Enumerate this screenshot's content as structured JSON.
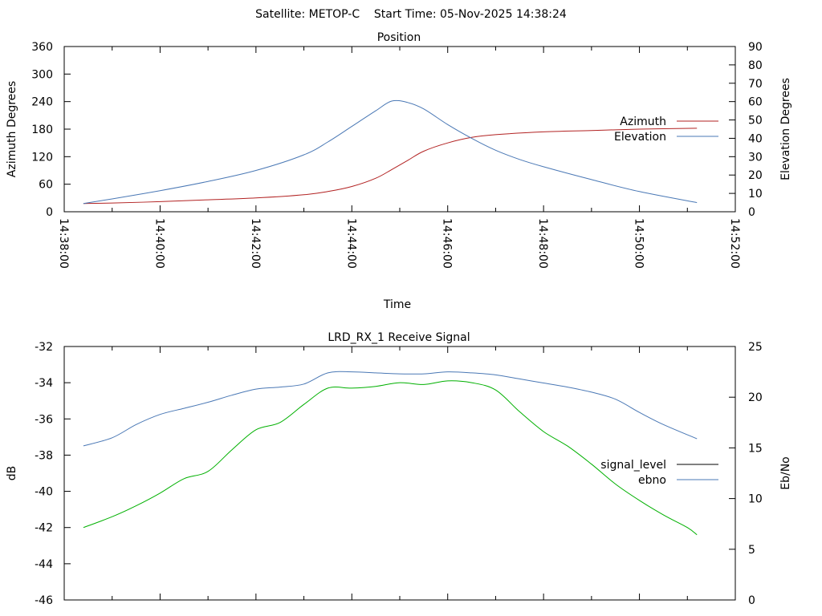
{
  "header": {
    "title": "Satellite: METOP-C    Start Time: 05-Nov-2025 14:38:24"
  },
  "chart_data": [
    {
      "type": "line",
      "title": "Position",
      "xlabel": "Time",
      "ylabel": "Azimuth Degrees",
      "y2label": "Elevation Degrees",
      "xlim": [
        "14:38:00",
        "14:52:00"
      ],
      "x_ticks": [
        "14:38:00",
        "14:40:00",
        "14:42:00",
        "14:44:00",
        "14:46:00",
        "14:48:00",
        "14:50:00",
        "14:52:00"
      ],
      "ylim": [
        0,
        360
      ],
      "y_ticks": [
        "0",
        "60",
        "120",
        "180",
        "240",
        "300",
        "360"
      ],
      "y2lim": [
        0,
        90
      ],
      "y2_ticks": [
        "0",
        "10",
        "20",
        "30",
        "40",
        "50",
        "60",
        "70",
        "80",
        "90"
      ],
      "grid": false,
      "legend_position": "right",
      "series": [
        {
          "name": "Azimuth",
          "axis": "left",
          "color": "#b22222",
          "x": [
            "14:38:24",
            "14:39:00",
            "14:40:00",
            "14:41:00",
            "14:42:00",
            "14:43:00",
            "14:43:30",
            "14:44:00",
            "14:44:30",
            "14:44:50",
            "14:45:10",
            "14:45:30",
            "14:46:00",
            "14:46:30",
            "14:47:00",
            "14:48:00",
            "14:49:00",
            "14:50:00",
            "14:51:12"
          ],
          "y": [
            18,
            19,
            22,
            26,
            30,
            37,
            44,
            55,
            73,
            92,
            112,
            132,
            150,
            162,
            168,
            174,
            177,
            180,
            182
          ]
        },
        {
          "name": "Elevation",
          "axis": "right",
          "color": "#4a78b5",
          "x": [
            "14:38:24",
            "14:39:00",
            "14:40:00",
            "14:41:00",
            "14:42:00",
            "14:43:00",
            "14:43:30",
            "14:44:00",
            "14:44:30",
            "14:44:50",
            "14:45:10",
            "14:45:30",
            "14:46:00",
            "14:46:30",
            "14:47:00",
            "14:47:30",
            "14:48:00",
            "14:49:00",
            "14:50:00",
            "14:51:12"
          ],
          "y": [
            4.5,
            7,
            11.5,
            16.5,
            22.5,
            31,
            38,
            46.5,
            55,
            60.3,
            59.5,
            56,
            47.5,
            40,
            33.5,
            28.5,
            24.5,
            17.5,
            11,
            5
          ]
        }
      ]
    },
    {
      "type": "line",
      "title": "LRD_RX_1 Receive Signal",
      "xlabel": "",
      "ylabel": "dB",
      "y2label": "Eb/No",
      "xlim": [
        "14:38:00",
        "14:52:00"
      ],
      "ylim": [
        -46,
        -32
      ],
      "y_ticks": [
        "-32",
        "-34",
        "-36",
        "-38",
        "-40",
        "-42",
        "-44",
        "-46"
      ],
      "y2lim": [
        0,
        25
      ],
      "y2_ticks": [
        "0",
        "5",
        "10",
        "15",
        "20",
        "25"
      ],
      "grid": false,
      "legend_position": "right",
      "series": [
        {
          "name": "signal_level",
          "axis": "left",
          "color": "#000000",
          "x": [],
          "y": []
        },
        {
          "name": "ebno",
          "axis": "right",
          "color": "#4a78b5",
          "x": [
            "14:38:24",
            "14:39:00",
            "14:39:30",
            "14:40:00",
            "14:40:30",
            "14:41:00",
            "14:41:30",
            "14:42:00",
            "14:42:30",
            "14:43:00",
            "14:43:30",
            "14:44:00",
            "14:44:30",
            "14:45:00",
            "14:45:30",
            "14:46:00",
            "14:46:30",
            "14:47:00",
            "14:47:30",
            "14:48:00",
            "14:48:30",
            "14:49:00",
            "14:49:30",
            "14:50:00",
            "14:50:30",
            "14:51:12"
          ],
          "y": [
            15.2,
            16.0,
            17.3,
            18.3,
            18.9,
            19.5,
            20.2,
            20.8,
            21.0,
            21.3,
            22.4,
            22.5,
            22.4,
            22.3,
            22.3,
            22.5,
            22.4,
            22.2,
            21.8,
            21.4,
            21.0,
            20.5,
            19.8,
            18.5,
            17.3,
            15.9
          ]
        },
        {
          "name": "",
          "axis": "left",
          "color": "#00b000",
          "x": [
            "14:38:24",
            "14:39:00",
            "14:39:30",
            "14:40:00",
            "14:40:30",
            "14:41:00",
            "14:41:30",
            "14:42:00",
            "14:42:30",
            "14:43:00",
            "14:43:30",
            "14:44:00",
            "14:44:30",
            "14:45:00",
            "14:45:30",
            "14:46:00",
            "14:46:30",
            "14:47:00",
            "14:47:30",
            "14:48:00",
            "14:48:30",
            "14:49:00",
            "14:49:30",
            "14:50:00",
            "14:50:30",
            "14:51:00",
            "14:51:12"
          ],
          "y": [
            -42.0,
            -41.4,
            -40.8,
            -40.1,
            -39.3,
            -38.9,
            -37.7,
            -36.6,
            -36.2,
            -35.2,
            -34.3,
            -34.3,
            -34.2,
            -34.0,
            -34.1,
            -33.9,
            -34.0,
            -34.4,
            -35.6,
            -36.7,
            -37.5,
            -38.5,
            -39.6,
            -40.5,
            -41.3,
            -42.0,
            -42.4
          ]
        }
      ]
    }
  ]
}
